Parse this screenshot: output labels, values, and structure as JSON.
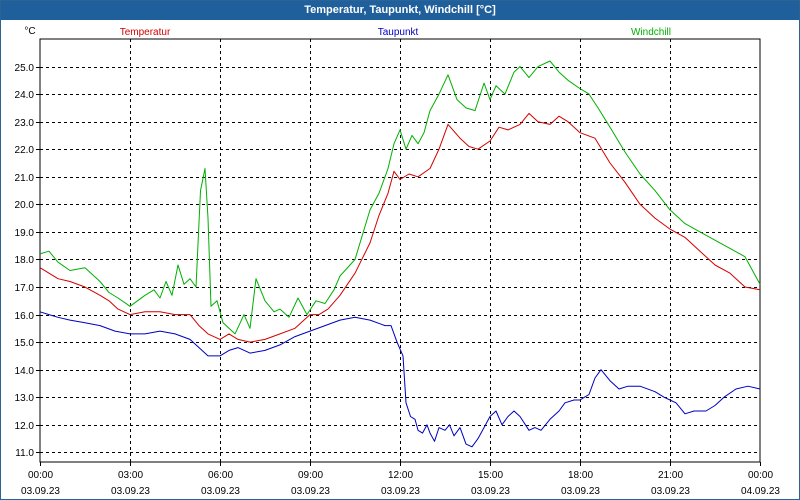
{
  "window": {
    "title": "Temperatur, Taupunkt, Windchill [°C]"
  },
  "chart_data": {
    "type": "line",
    "title": "Temperatur, Taupunkt, Windchill [°C]",
    "ylabel": "°C",
    "xlabel": "",
    "ylim": [
      10.65,
      26.0
    ],
    "xlim": [
      0,
      24
    ],
    "grid": true,
    "legend_position": "top",
    "y_ticks": [
      11.0,
      12.0,
      13.0,
      14.0,
      15.0,
      16.0,
      17.0,
      18.0,
      19.0,
      20.0,
      21.0,
      22.0,
      23.0,
      24.0,
      25.0
    ],
    "x_ticks": [
      {
        "hour": 0,
        "time": "00:00",
        "date": "03.09.23"
      },
      {
        "hour": 3,
        "time": "03:00",
        "date": "03.09.23"
      },
      {
        "hour": 6,
        "time": "06:00",
        "date": "03.09.23"
      },
      {
        "hour": 9,
        "time": "09:00",
        "date": "03.09.23"
      },
      {
        "hour": 12,
        "time": "12:00",
        "date": "03.09.23"
      },
      {
        "hour": 15,
        "time": "15:00",
        "date": "03.09.23"
      },
      {
        "hour": 18,
        "time": "18:00",
        "date": "03.09.23"
      },
      {
        "hour": 21,
        "time": "21:00",
        "date": "03.09.23"
      },
      {
        "hour": 24,
        "time": "00:00",
        "date": "04.09.23"
      }
    ],
    "series": [
      {
        "name": "Temperatur",
        "color": "#d40000",
        "x": [
          0,
          0.3,
          0.6,
          1,
          1.5,
          2,
          2.3,
          2.6,
          3,
          3.5,
          4,
          4.5,
          5,
          5.3,
          5.6,
          6,
          6.3,
          6.6,
          7,
          7.5,
          8,
          8.5,
          9,
          9.3,
          9.6,
          10,
          10.5,
          11,
          11.3,
          11.6,
          11.8,
          12,
          12.3,
          12.6,
          13,
          13.3,
          13.6,
          14,
          14.3,
          14.6,
          15,
          15.3,
          15.6,
          16,
          16.3,
          16.6,
          17,
          17.3,
          17.6,
          18,
          18.5,
          19,
          19.5,
          20,
          20.5,
          21,
          21.5,
          22,
          22.5,
          23,
          23.5,
          24
        ],
        "values": [
          17.7,
          17.5,
          17.3,
          17.2,
          17.0,
          16.7,
          16.5,
          16.2,
          16.0,
          16.1,
          16.1,
          16.0,
          16.0,
          15.6,
          15.3,
          15.1,
          15.3,
          15.1,
          15.0,
          15.1,
          15.3,
          15.5,
          16.0,
          16.0,
          16.2,
          16.7,
          17.5,
          18.6,
          19.6,
          20.4,
          21.2,
          20.9,
          21.1,
          21.0,
          21.3,
          22.0,
          22.9,
          22.4,
          22.1,
          22.0,
          22.3,
          22.8,
          22.7,
          22.9,
          23.3,
          23.0,
          22.9,
          23.2,
          23.0,
          22.6,
          22.4,
          21.5,
          20.8,
          20.0,
          19.5,
          19.1,
          18.8,
          18.3,
          17.8,
          17.5,
          17.0,
          16.9
        ]
      },
      {
        "name": "Taupunkt",
        "color": "#0000c0",
        "x": [
          0,
          0.3,
          0.6,
          1,
          1.5,
          2,
          2.5,
          3,
          3.5,
          4,
          4.5,
          5,
          5.3,
          5.6,
          6,
          6.3,
          6.6,
          7,
          7.5,
          8,
          8.5,
          9,
          9.5,
          10,
          10.5,
          11,
          11.5,
          11.7,
          11.9,
          12.1,
          12.2,
          12.35,
          12.5,
          12.6,
          12.75,
          12.9,
          13.0,
          13.15,
          13.3,
          13.5,
          13.65,
          13.8,
          14.0,
          14.2,
          14.4,
          14.6,
          14.8,
          15.0,
          15.2,
          15.4,
          15.6,
          15.8,
          16.0,
          16.3,
          16.5,
          16.7,
          17.0,
          17.3,
          17.5,
          17.8,
          18.0,
          18.15,
          18.3,
          18.5,
          18.7,
          19.0,
          19.3,
          19.6,
          20.0,
          20.5,
          20.8,
          21.0,
          21.2,
          21.5,
          21.8,
          22.2,
          22.5,
          22.8,
          23.2,
          23.6,
          24
        ],
        "values": [
          16.1,
          16.0,
          15.9,
          15.8,
          15.7,
          15.6,
          15.4,
          15.3,
          15.3,
          15.4,
          15.3,
          15.1,
          14.8,
          14.5,
          14.5,
          14.7,
          14.8,
          14.6,
          14.7,
          14.9,
          15.2,
          15.4,
          15.6,
          15.8,
          15.9,
          15.8,
          15.6,
          15.6,
          15.0,
          14.5,
          12.8,
          12.3,
          12.2,
          11.8,
          11.7,
          12.0,
          11.7,
          11.4,
          11.9,
          11.8,
          12.0,
          11.6,
          11.9,
          11.3,
          11.2,
          11.5,
          11.9,
          12.3,
          12.5,
          12.0,
          12.3,
          12.5,
          12.3,
          11.8,
          11.9,
          11.8,
          12.2,
          12.5,
          12.8,
          12.9,
          12.9,
          13.0,
          13.1,
          13.7,
          14.0,
          13.6,
          13.3,
          13.4,
          13.4,
          13.2,
          13.0,
          12.9,
          12.8,
          12.4,
          12.5,
          12.5,
          12.7,
          13.0,
          13.3,
          13.4,
          13.3
        ]
      },
      {
        "name": "Windchill",
        "color": "#00b000",
        "x": [
          0,
          0.3,
          0.6,
          1,
          1.5,
          2,
          2.3,
          2.6,
          3,
          3.5,
          3.8,
          4,
          4.2,
          4.4,
          4.6,
          4.8,
          5.0,
          5.2,
          5.35,
          5.5,
          5.6,
          5.7,
          5.9,
          6.1,
          6.3,
          6.5,
          6.8,
          7.0,
          7.2,
          7.5,
          7.8,
          8.0,
          8.3,
          8.6,
          8.9,
          9.2,
          9.5,
          9.8,
          10,
          10.5,
          11,
          11.3,
          11.6,
          11.8,
          12,
          12.2,
          12.4,
          12.6,
          12.8,
          13.0,
          13.3,
          13.6,
          13.9,
          14.2,
          14.5,
          14.8,
          15.0,
          15.2,
          15.5,
          15.8,
          16.0,
          16.3,
          16.6,
          17.0,
          17.3,
          17.6,
          18.0,
          18.3,
          18.6,
          19.0,
          19.5,
          20.0,
          20.5,
          21.0,
          21.5,
          22.0,
          22.5,
          23.0,
          23.5,
          24
        ],
        "values": [
          18.2,
          18.3,
          17.9,
          17.6,
          17.7,
          17.2,
          16.8,
          16.6,
          16.3,
          16.7,
          16.9,
          16.6,
          17.2,
          16.7,
          17.8,
          17.1,
          17.3,
          17.0,
          20.5,
          21.3,
          19.5,
          16.3,
          16.5,
          15.7,
          15.5,
          15.3,
          16.0,
          15.5,
          17.3,
          16.5,
          16.1,
          16.2,
          15.9,
          16.6,
          16.0,
          16.5,
          16.4,
          16.9,
          17.4,
          18.0,
          19.8,
          20.4,
          21.3,
          22.2,
          22.7,
          22.0,
          22.5,
          22.2,
          22.6,
          23.4,
          24.0,
          24.7,
          23.8,
          23.5,
          23.4,
          24.4,
          23.8,
          24.3,
          24.0,
          24.8,
          25.0,
          24.6,
          25.0,
          25.2,
          24.8,
          24.5,
          24.2,
          24.0,
          23.5,
          22.8,
          21.9,
          21.1,
          20.5,
          19.8,
          19.3,
          19.0,
          18.7,
          18.4,
          18.1,
          17.1
        ]
      }
    ]
  }
}
